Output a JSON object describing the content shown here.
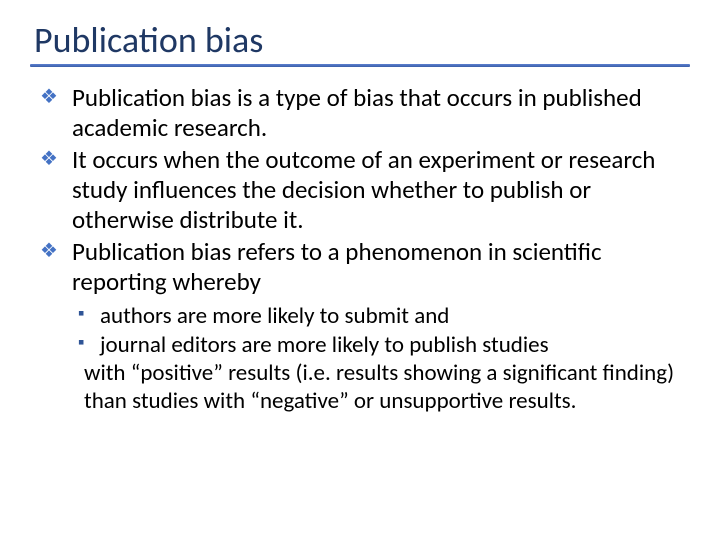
{
  "title": "Publication bias",
  "bullets": [
    "Publication bias is a type of bias that occurs in published academic research.",
    "It occurs when the outcome of an experiment or research study influences the decision whether to publish or otherwise distribute it.",
    "Publication bias refers to a phenomenon in scientific reporting whereby"
  ],
  "subBullets": [
    "authors are more likely to submit and",
    "journal editors are more likely to publish studies"
  ],
  "subConclusion": "with “positive” results (i.e. results showing a significant finding) than studies with “negative” or unsupportive results.",
  "colors": {
    "title": "#1f3864",
    "underline": "#4472c4",
    "diamond": "#4472c4",
    "square": "#2f5496",
    "text": "#000000",
    "background": "#ffffff"
  },
  "typography": {
    "titleSize": 36,
    "bodySize": 25,
    "subSize": 23,
    "family": "Calibri"
  }
}
